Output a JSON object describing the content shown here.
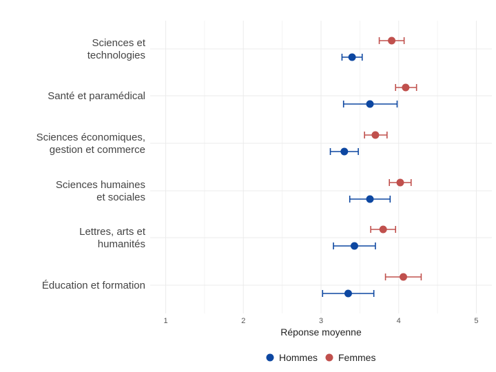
{
  "chart_data": {
    "type": "scatter",
    "subtype": "dot-with-error-bars",
    "orientation": "horizontal",
    "categories": [
      "Sciences et\ntechnologies",
      "Santé et paramédical",
      "Sciences économiques,\ngestion et commerce",
      "Sciences humaines\net sociales",
      "Lettres, arts et\nhumanités",
      "Éducation et formation"
    ],
    "series": [
      {
        "name": "Hommes",
        "color": "#0d47a1",
        "values": [
          3.4,
          3.63,
          3.3,
          3.63,
          3.43,
          3.35
        ],
        "lower": [
          3.27,
          3.29,
          3.12,
          3.37,
          3.16,
          3.02
        ],
        "upper": [
          3.53,
          3.98,
          3.48,
          3.89,
          3.7,
          3.68
        ]
      },
      {
        "name": "Femmes",
        "color": "#c0504d",
        "values": [
          3.91,
          4.09,
          3.7,
          4.02,
          3.8,
          4.06
        ],
        "lower": [
          3.75,
          3.96,
          3.56,
          3.88,
          3.64,
          3.83
        ],
        "upper": [
          4.07,
          4.23,
          3.85,
          4.16,
          3.96,
          4.29
        ]
      }
    ],
    "xlabel": "Réponse moyenne",
    "xlim": [
      0.8,
      5.2
    ],
    "xticks": [
      "1",
      "2",
      "3",
      "4",
      "5"
    ],
    "grid": true,
    "legend_position": "bottom"
  }
}
